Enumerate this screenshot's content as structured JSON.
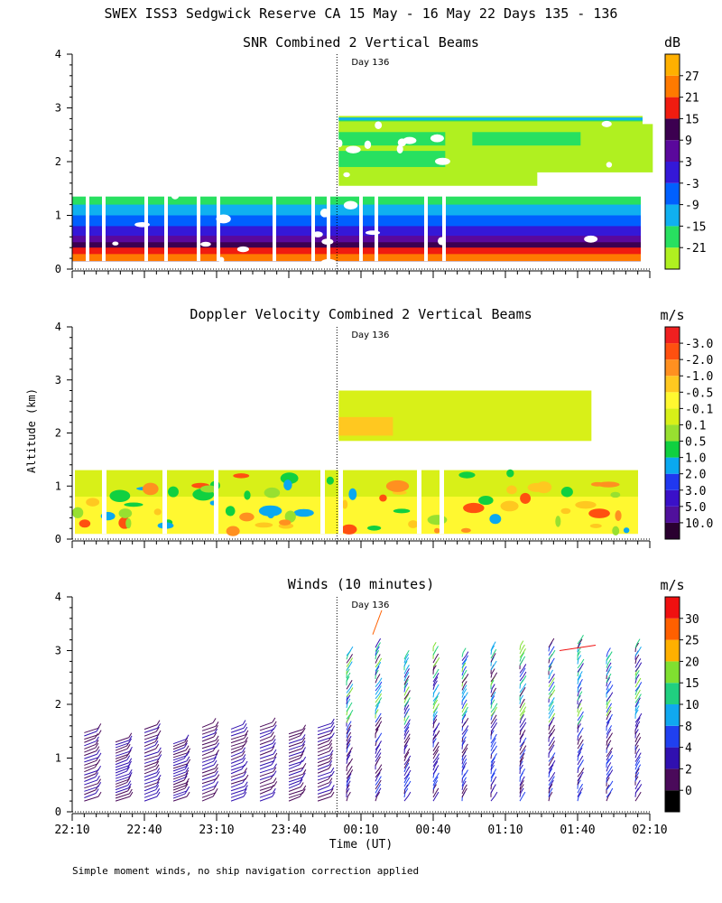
{
  "title": "SWEX ISS3 Sedgwick Reserve CA  15 May - 16 May 22 Days 135 - 136",
  "footnote": "Simple moment winds, no ship navigation correction applied",
  "chart_data": [
    {
      "type": "heatmap",
      "title": "SNR Combined 2 Vertical Beams",
      "ylabel": "Altitude (km)",
      "xlabel": "",
      "yticks": [
        "0",
        "1",
        "2",
        "3",
        "4"
      ],
      "ylim": [
        0,
        4
      ],
      "annotation": "Day 136",
      "annotation_time": "00:00",
      "colorbar": {
        "unit": "dB",
        "labels": [
          "-21",
          "-15",
          "-9",
          "-3",
          "3",
          "9",
          "15",
          "21",
          "27"
        ],
        "colors": [
          "#b0f020",
          "#28e060",
          "#10b0f0",
          "#0060ff",
          "#3418d8",
          "#5a089c",
          "#3c0050",
          "#f01c10",
          "#ff7a00",
          "#ffb000"
        ]
      },
      "layers": [
        {
          "alt_top": 1.35,
          "level": -21
        },
        {
          "alt_top": 1.2,
          "level": -15
        },
        {
          "alt_top": 1.0,
          "level": -9
        },
        {
          "alt_top": 0.8,
          "level": -3
        },
        {
          "alt_top": 0.62,
          "level": 3
        },
        {
          "alt_top": 0.5,
          "level": 9
        },
        {
          "alt_top": 0.4,
          "level": 15
        },
        {
          "alt_top": 0.28,
          "level": 21
        }
      ]
    },
    {
      "type": "heatmap",
      "title": "Doppler Velocity Combined 2 Vertical Beams",
      "ylabel": "Altitude (km)",
      "xlabel": "",
      "yticks": [
        "0",
        "1",
        "2",
        "3",
        "4"
      ],
      "ylim": [
        0,
        4
      ],
      "annotation": "Day 136",
      "annotation_time": "00:00",
      "colorbar": {
        "unit": "m/s",
        "labels": [
          "10.0",
          "5.0",
          "3.0",
          "2.0",
          "1.0",
          "0.5",
          "0.1",
          "-0.1",
          "-0.5",
          "-1.0",
          "-2.0",
          "-3.0"
        ],
        "colors": [
          "#2a0030",
          "#50109c",
          "#3a10c8",
          "#2038f0",
          "#0aa8f0",
          "#10d040",
          "#98e030",
          "#d8f018",
          "#fff830",
          "#ffc820",
          "#ff9020",
          "#ff5010",
          "#f02020"
        ]
      }
    },
    {
      "type": "scatter",
      "title": "Winds (10 minutes)",
      "ylabel": "Altitude (km)",
      "xlabel": "Time (UT)",
      "yticks": [
        "0",
        "1",
        "2",
        "3",
        "4"
      ],
      "ylim": [
        0,
        4
      ],
      "xticks": [
        "22:10",
        "22:40",
        "23:10",
        "23:40",
        "00:10",
        "00:40",
        "01:10",
        "01:40",
        "02:10"
      ],
      "annotation": "Day 136",
      "annotation_time": "00:00",
      "colorbar": {
        "unit": "m/s",
        "labels": [
          "0",
          "2",
          "4",
          "8",
          "10",
          "15",
          "20",
          "25",
          "30"
        ],
        "colors": [
          "#000000",
          "#4a0a5a",
          "#3010b0",
          "#2040f0",
          "#10a8f0",
          "#20d080",
          "#80e030",
          "#ffb000",
          "#ff6000",
          "#f01010"
        ]
      },
      "profile_times": [
        "22:15",
        "22:28",
        "22:40",
        "22:52",
        "23:04",
        "23:16",
        "23:28",
        "23:40",
        "23:52",
        "00:04",
        "00:16",
        "00:28",
        "00:40",
        "00:52",
        "01:04",
        "01:16",
        "01:28",
        "01:40",
        "01:52",
        "02:04"
      ]
    }
  ]
}
